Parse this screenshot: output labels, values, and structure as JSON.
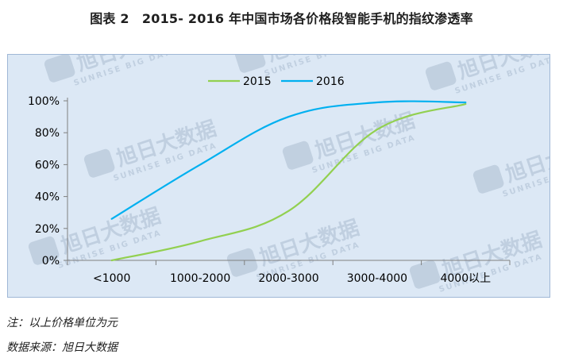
{
  "title": "图表 2　2015- 2016 年中国市场各价格段智能手机的指纹渗透率",
  "watermark": {
    "main": "旭日大数据",
    "sub": "SUNRISE BIG DATA"
  },
  "chart_data": {
    "type": "line",
    "categories": [
      "<1000",
      "1000-2000",
      "2000-3000",
      "3000-4000",
      "4000以上"
    ],
    "ylim": [
      0,
      1
    ],
    "yticks": [
      "0%",
      "20%",
      "40%",
      "60%",
      "80%",
      "100%"
    ],
    "legend_position": "top-center",
    "grid": false,
    "series": [
      {
        "name": "2015",
        "color": "#92d050",
        "values": [
          0.0,
          0.12,
          0.31,
          0.82,
          0.98
        ]
      },
      {
        "name": "2016",
        "color": "#00b0f0",
        "values": [
          0.26,
          0.6,
          0.9,
          0.99,
          0.99
        ]
      }
    ]
  },
  "notes": {
    "note1": "注：以上价格单位为元",
    "source": "数据来源：旭日大数据"
  }
}
